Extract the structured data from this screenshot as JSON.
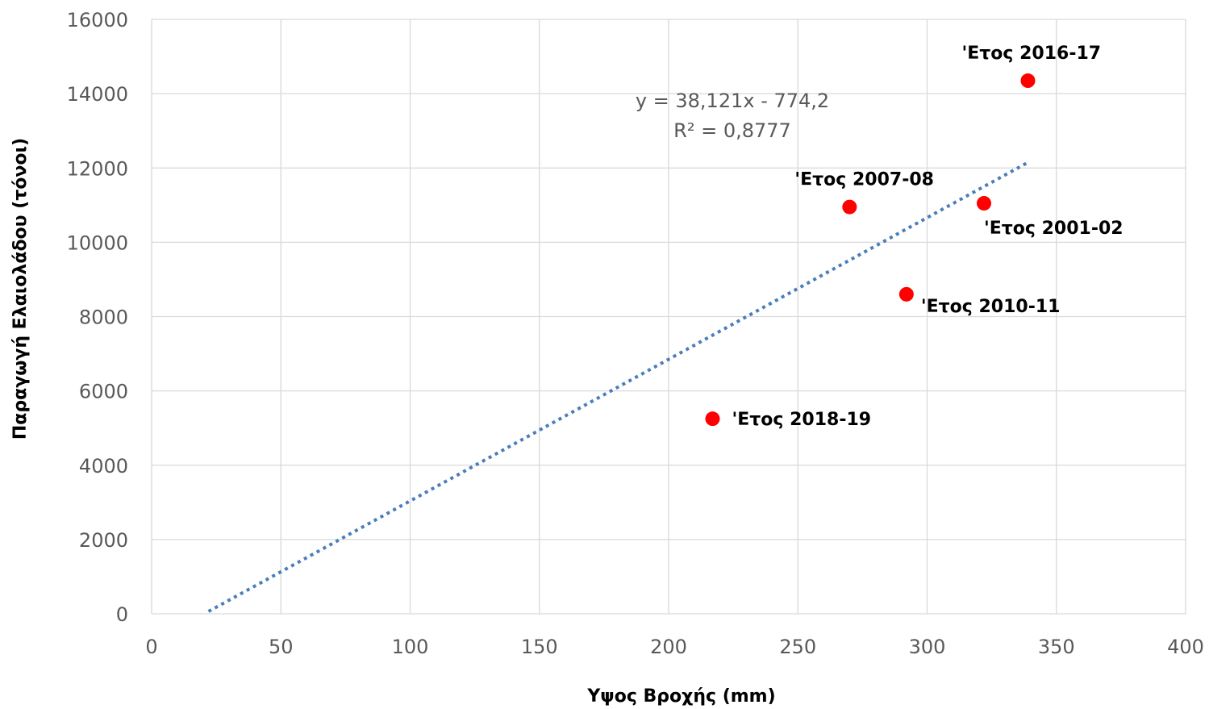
{
  "chart_data": {
    "type": "scatter",
    "title": "",
    "xlabel": "Υψος Βροχής (mm)",
    "ylabel": "Παραγωγή Ελαιολάδου (τόνοι)",
    "xlim": [
      0,
      400
    ],
    "ylim": [
      0,
      16000
    ],
    "xticks": [
      0,
      50,
      100,
      150,
      200,
      250,
      300,
      350,
      400
    ],
    "yticks": [
      0,
      2000,
      4000,
      6000,
      8000,
      10000,
      12000,
      14000,
      16000
    ],
    "grid": true,
    "point_color": "#ff0000",
    "trend_color": "#4a7ebb",
    "points": [
      {
        "x": 322,
        "y": 11050,
        "label": "'Ετος 2001-02"
      },
      {
        "x": 270,
        "y": 10950,
        "label": "'Ετος 2007-08"
      },
      {
        "x": 292,
        "y": 8600,
        "label": "'Ετος 2010-11"
      },
      {
        "x": 339,
        "y": 14350,
        "label": "'Ετος 2016-17"
      },
      {
        "x": 217,
        "y": 5250,
        "label": "'Ετος 2018-19"
      }
    ],
    "trendline": {
      "slope": 38.121,
      "intercept": -774.2,
      "x_start": 22,
      "x_end": 339,
      "equation": "y = 38,121x - 774,2",
      "r_squared": "R² = 0,8777"
    }
  }
}
